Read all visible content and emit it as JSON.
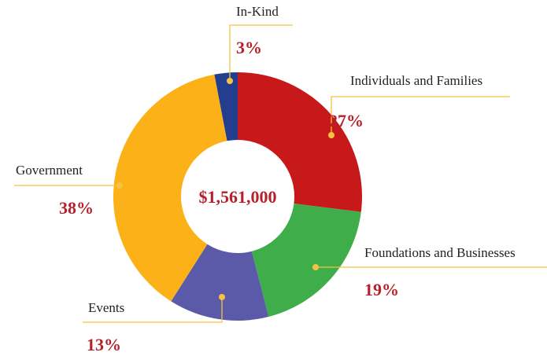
{
  "chart_data": {
    "type": "donut",
    "center_label": "$1,561,000",
    "categories": [
      "Individuals and Families",
      "Foundations and Businesses",
      "Events",
      "Government",
      "In-Kind"
    ],
    "values": [
      27,
      19,
      13,
      38,
      3
    ],
    "value_labels": [
      "27%",
      "19%",
      "13%",
      "38%",
      "3%"
    ],
    "colors": [
      "#c8191a",
      "#3fae4a",
      "#5b5aa8",
      "#fbb117",
      "#243e8f"
    ]
  }
}
